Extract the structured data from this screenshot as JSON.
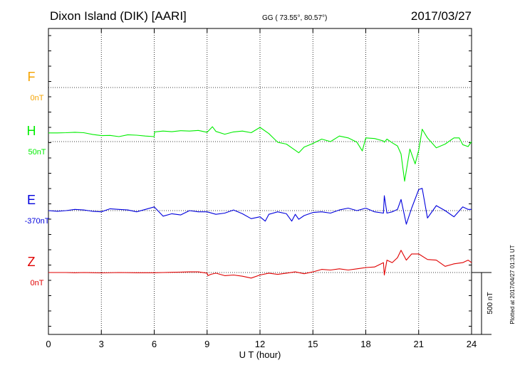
{
  "header": {
    "station": "Dixon Island (DIK)  [AARI]",
    "coords": "GG ( 73.55°,  80.57°)",
    "date": "2017/03/27"
  },
  "side_note": "Plotted at 2017/04/27 01:31  UT",
  "scale_label": "500 nT",
  "colors": {
    "F": "#f5a300",
    "H": "#00ee00",
    "E": "#0000dd",
    "Z": "#e00000"
  },
  "chart_data": {
    "type": "line",
    "xlabel": "U T (hour)",
    "xlim": [
      0,
      24
    ],
    "x_ticks": [
      "0",
      "3",
      "6",
      "9",
      "12",
      "15",
      "18",
      "21",
      "24"
    ],
    "scale_nT": 500,
    "channels": [
      {
        "name": "F",
        "baseline": "0nT"
      },
      {
        "name": "H",
        "baseline": "50nT"
      },
      {
        "name": "E",
        "baseline": "-370nT"
      },
      {
        "name": "Z",
        "baseline": "0nT"
      }
    ],
    "series": [
      {
        "name": "H",
        "x": [
          0,
          0.5,
          1,
          1.5,
          2,
          2.5,
          3,
          3.5,
          4,
          4.5,
          5,
          5.5,
          6,
          6.02,
          6.5,
          7,
          7.5,
          8,
          8.5,
          9,
          9.3,
          9.5,
          10,
          10.5,
          11,
          11.5,
          12,
          12.5,
          13,
          13.5,
          14,
          14.2,
          14.5,
          15,
          15.5,
          16,
          16.5,
          17,
          17.5,
          17.8,
          18,
          18.5,
          19,
          19.05,
          19.2,
          19.5,
          19.8,
          20,
          20.2,
          20.5,
          20.8,
          21,
          21.2,
          21.5,
          22,
          22.5,
          23,
          23.3,
          23.5,
          23.8,
          24
        ],
        "y": [
          70,
          70,
          72,
          75,
          72,
          58,
          48,
          50,
          40,
          55,
          52,
          45,
          40,
          78,
          85,
          80,
          88,
          85,
          90,
          75,
          120,
          82,
          60,
          78,
          85,
          72,
          115,
          65,
          -5,
          -20,
          -70,
          -90,
          -45,
          -15,
          20,
          0,
          45,
          30,
          -5,
          -75,
          30,
          25,
          5,
          -5,
          20,
          -10,
          -35,
          -100,
          -320,
          -60,
          -180,
          -70,
          100,
          30,
          -50,
          -20,
          30,
          30,
          -25,
          -40,
          0
        ]
      },
      {
        "name": "E",
        "x": [
          0,
          0.5,
          1,
          1.5,
          2,
          2.5,
          3,
          3.5,
          4,
          4.5,
          5,
          5.5,
          6,
          6.5,
          7,
          7.5,
          8,
          8.5,
          9,
          9.5,
          10,
          10.5,
          11,
          11.5,
          12,
          12.3,
          12.5,
          13,
          13.5,
          13.8,
          14,
          14.2,
          14.5,
          15,
          15.5,
          16,
          16.5,
          17,
          17.5,
          18,
          18.5,
          19,
          19.05,
          19.2,
          19.5,
          19.8,
          20,
          20.3,
          20.6,
          21,
          21.2,
          21.5,
          22,
          22.5,
          23,
          23.5,
          23.8,
          24
        ],
        "y": [
          0,
          -5,
          0,
          10,
          5,
          -5,
          -10,
          15,
          10,
          5,
          -10,
          10,
          30,
          -45,
          -25,
          -35,
          0,
          -10,
          -10,
          -30,
          -20,
          5,
          -25,
          -65,
          -50,
          -85,
          -30,
          -10,
          -25,
          -85,
          -30,
          -70,
          -40,
          -15,
          -10,
          -20,
          5,
          20,
          0,
          20,
          -10,
          -20,
          120,
          -20,
          -10,
          10,
          90,
          -110,
          20,
          170,
          180,
          -60,
          40,
          0,
          -50,
          30,
          10,
          10
        ]
      },
      {
        "name": "Z",
        "x": [
          0,
          0.5,
          1,
          1.5,
          2,
          3,
          4,
          5,
          6,
          6.5,
          7,
          8,
          8.5,
          9,
          9.05,
          9.2,
          9.5,
          10,
          10.5,
          11,
          11.5,
          12,
          12.5,
          13,
          13.5,
          14,
          14.5,
          15,
          15.5,
          16,
          16.5,
          17,
          17.5,
          18,
          18.5,
          19,
          19.05,
          19.2,
          19.5,
          19.8,
          20,
          20.3,
          20.6,
          21,
          21.5,
          22,
          22.5,
          23,
          23.5,
          23.8,
          24
        ],
        "y": [
          0,
          0,
          0,
          -2,
          0,
          -3,
          0,
          -2,
          -2,
          0,
          2,
          5,
          5,
          -5,
          -25,
          -15,
          -5,
          -25,
          -20,
          -30,
          -45,
          -20,
          -5,
          -15,
          -5,
          5,
          -10,
          5,
          25,
          20,
          30,
          20,
          30,
          40,
          45,
          80,
          -20,
          100,
          80,
          120,
          180,
          100,
          150,
          150,
          105,
          100,
          50,
          70,
          80,
          100,
          80
        ]
      }
    ]
  }
}
